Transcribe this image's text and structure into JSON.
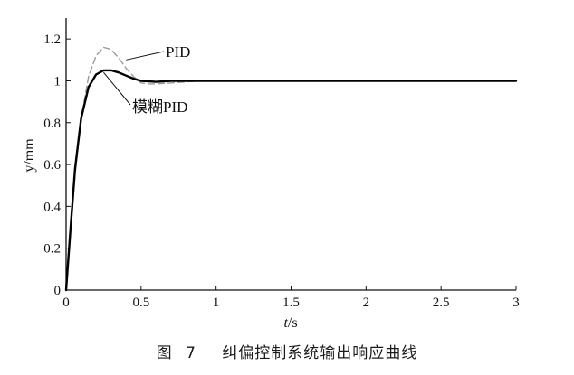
{
  "chart_data": {
    "type": "line",
    "xlabel_italic": "t",
    "xlabel_unit": "/s",
    "ylabel": "y/mm",
    "xlim": [
      0,
      3
    ],
    "ylim": [
      0,
      1.3
    ],
    "x_ticks": [
      0,
      0.5,
      1,
      1.5,
      2,
      2.5,
      3
    ],
    "x_tick_labels": [
      "0",
      "0.5",
      "1",
      "1.5",
      "2",
      "2.5",
      "3"
    ],
    "y_ticks": [
      0,
      0.2,
      0.4,
      0.6,
      0.8,
      1,
      1.2
    ],
    "y_tick_labels": [
      "0",
      "0.2",
      "0.4",
      "0.6",
      "0.8",
      "1",
      "1.2"
    ],
    "grid": false,
    "series": [
      {
        "name": "PID",
        "style": "dashed",
        "color": "#9a9a9a",
        "x": [
          0,
          0.03,
          0.06,
          0.1,
          0.15,
          0.2,
          0.25,
          0.3,
          0.35,
          0.4,
          0.45,
          0.5,
          0.55,
          0.6,
          0.7,
          0.8,
          0.9,
          1.0,
          1.5,
          2.0,
          2.5,
          3.0
        ],
        "y": [
          0,
          0.28,
          0.55,
          0.82,
          1.02,
          1.12,
          1.16,
          1.15,
          1.11,
          1.06,
          1.02,
          0.99,
          0.985,
          0.985,
          0.99,
          0.995,
          1.0,
          1.0,
          1.0,
          1.0,
          1.0,
          1.0
        ]
      },
      {
        "name": "模糊PID",
        "style": "solid",
        "color": "#000000",
        "x": [
          0,
          0.03,
          0.06,
          0.1,
          0.15,
          0.2,
          0.25,
          0.3,
          0.35,
          0.4,
          0.45,
          0.5,
          0.6,
          0.7,
          0.8,
          1.0,
          1.5,
          2.0,
          2.5,
          3.0
        ],
        "y": [
          0,
          0.3,
          0.58,
          0.82,
          0.97,
          1.03,
          1.05,
          1.05,
          1.04,
          1.025,
          1.01,
          1.0,
          0.995,
          1.0,
          1.0,
          1.0,
          1.0,
          1.0,
          1.0,
          1.0
        ]
      }
    ],
    "annotations": [
      {
        "text": "PID",
        "series": "PID",
        "arrow_to": [
          0.4,
          1.1
        ]
      },
      {
        "text": "模糊PID",
        "series": "模糊PID",
        "arrow_to": [
          0.25,
          1.04
        ]
      }
    ]
  },
  "caption": {
    "figure_label": "图",
    "figure_number": "7",
    "title": "纠偏控制系统输出响应曲线"
  }
}
